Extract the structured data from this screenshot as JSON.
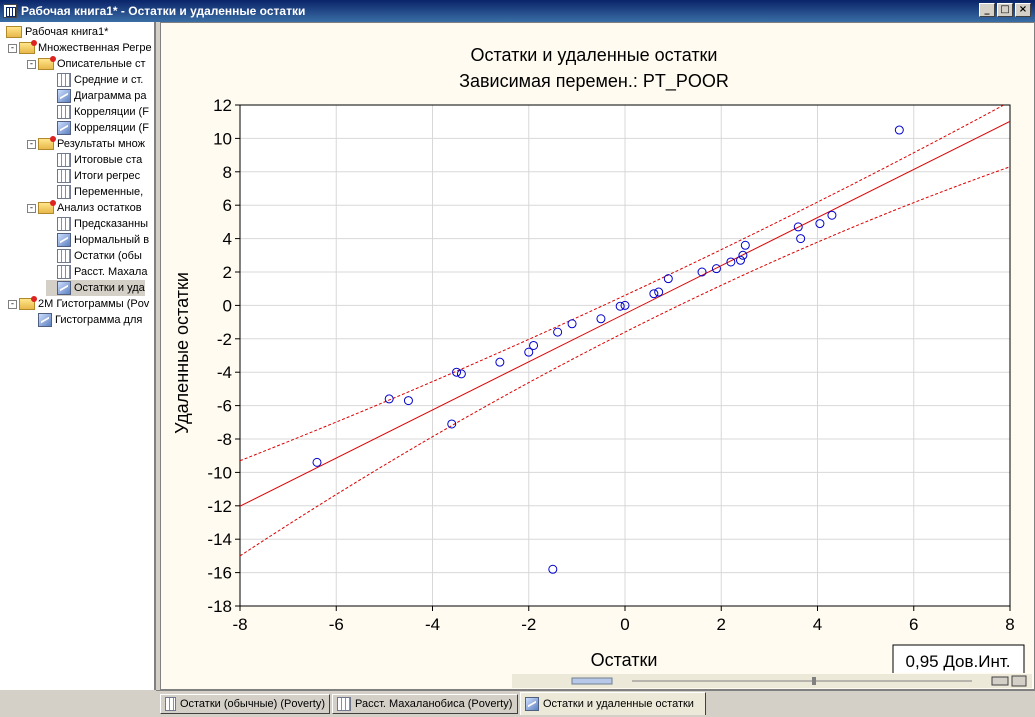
{
  "window": {
    "title": "Рабочая книга1* - Остатки и удаленные остатки"
  },
  "tree": [
    {
      "label": "Рабочая книга1*",
      "level": 0,
      "icon": "open-folder-icon",
      "expander": ""
    },
    {
      "label": "Множественная Регре",
      "level": 1,
      "icon": "folder-icon",
      "expander": "-"
    },
    {
      "label": "Описательные ст",
      "level": 2,
      "icon": "folder-icon",
      "expander": "-"
    },
    {
      "label": "Средние и ст.",
      "level": 3,
      "icon": "spreadsheet-icon",
      "expander": ""
    },
    {
      "label": "Диаграмма ра",
      "level": 3,
      "icon": "graph-icon",
      "expander": ""
    },
    {
      "label": "Корреляции (F",
      "level": 3,
      "icon": "spreadsheet-icon",
      "expander": ""
    },
    {
      "label": "Корреляции (F",
      "level": 3,
      "icon": "graph-icon",
      "expander": ""
    },
    {
      "label": "Результаты множ",
      "level": 2,
      "icon": "folder-icon",
      "expander": "-"
    },
    {
      "label": "Итоговые ста",
      "level": 3,
      "icon": "spreadsheet-icon",
      "expander": ""
    },
    {
      "label": "Итоги регрес",
      "level": 3,
      "icon": "spreadsheet-icon",
      "expander": ""
    },
    {
      "label": "Переменные,",
      "level": 3,
      "icon": "spreadsheet-icon",
      "expander": ""
    },
    {
      "label": "Анализ остатков",
      "level": 2,
      "icon": "folder-icon",
      "expander": "-"
    },
    {
      "label": "Предсказанны",
      "level": 3,
      "icon": "spreadsheet-icon",
      "expander": ""
    },
    {
      "label": "Нормальный в",
      "level": 3,
      "icon": "graph-icon",
      "expander": ""
    },
    {
      "label": "Остатки (обы",
      "level": 3,
      "icon": "spreadsheet-icon",
      "expander": ""
    },
    {
      "label": "Расст. Махала",
      "level": 3,
      "icon": "spreadsheet-icon",
      "expander": ""
    },
    {
      "label": "Остатки и уда",
      "level": 3,
      "icon": "graph-icon",
      "expander": "",
      "selected": true
    },
    {
      "label": "2М Гистограммы (Pov",
      "level": 1,
      "icon": "folder-icon",
      "expander": "-"
    },
    {
      "label": "Гистограмма для",
      "level": 2,
      "icon": "graph-icon",
      "expander": ""
    }
  ],
  "tabs": [
    {
      "label": "Остатки (обычные) (Poverty)",
      "active": false
    },
    {
      "label": "Расст. Махаланобиса (Poverty)",
      "active": false
    },
    {
      "label": "Остатки и удаленные остатки",
      "active": true
    }
  ],
  "legend_box": "0,95 Дов.Инт.",
  "colors": {
    "series": "#0000cc",
    "fit_line": "#dd0000",
    "background": "#fffbf0"
  },
  "chart_data": {
    "type": "scatter",
    "title": "Остатки и удаленные остатки",
    "subtitle": "Зависимая перемен.: PT_POOR",
    "xlabel": "Остатки",
    "ylabel": "Удаленные остатки",
    "xlim": [
      -8,
      8
    ],
    "ylim": [
      -18,
      12
    ],
    "xticks": [
      -8,
      -6,
      -4,
      -2,
      0,
      2,
      4,
      6,
      8
    ],
    "yticks": [
      -18,
      -16,
      -14,
      -12,
      -10,
      -8,
      -6,
      -4,
      -2,
      0,
      2,
      4,
      6,
      8,
      10,
      12
    ],
    "grid": true,
    "fit_line": {
      "slope": 1.44,
      "intercept": -0.5
    },
    "ci_upper": [
      [
        -8,
        -9.3
      ],
      [
        0,
        0.6
      ],
      [
        8,
        12.2
      ]
    ],
    "ci_lower": [
      [
        -8,
        -15.0
      ],
      [
        0,
        -1.6
      ],
      [
        8,
        8.3
      ]
    ],
    "points": [
      [
        -6.4,
        -9.4
      ],
      [
        -4.9,
        -5.6
      ],
      [
        -4.5,
        -5.7
      ],
      [
        -3.6,
        -7.1
      ],
      [
        -3.5,
        -4.0
      ],
      [
        -3.4,
        -4.1
      ],
      [
        -2.6,
        -3.4
      ],
      [
        -2.0,
        -2.8
      ],
      [
        -1.9,
        -2.4
      ],
      [
        -1.5,
        -15.8
      ],
      [
        -1.4,
        -1.6
      ],
      [
        -1.1,
        -1.1
      ],
      [
        -0.5,
        -0.8
      ],
      [
        -0.1,
        -0.05
      ],
      [
        0.0,
        0.0
      ],
      [
        0.6,
        0.7
      ],
      [
        0.7,
        0.8
      ],
      [
        0.9,
        1.6
      ],
      [
        1.6,
        2.0
      ],
      [
        1.9,
        2.2
      ],
      [
        2.2,
        2.6
      ],
      [
        2.4,
        2.7
      ],
      [
        2.45,
        3.0
      ],
      [
        2.5,
        3.6
      ],
      [
        3.6,
        4.7
      ],
      [
        3.65,
        4.0
      ],
      [
        4.05,
        4.9
      ],
      [
        4.3,
        5.4
      ],
      [
        5.7,
        10.5
      ]
    ]
  }
}
